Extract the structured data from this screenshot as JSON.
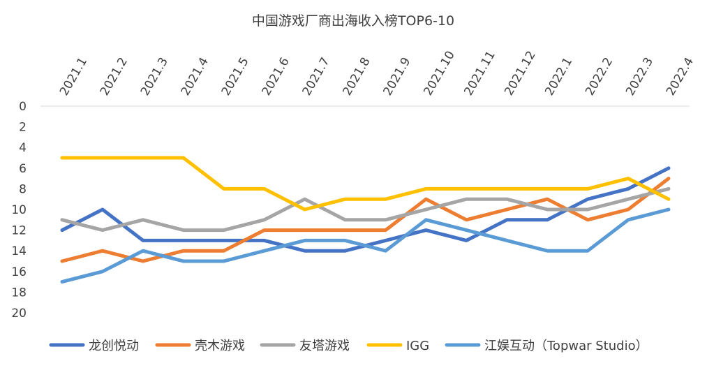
{
  "chart_data": {
    "type": "line",
    "title": "中国游戏厂商出海收入榜TOP6-10",
    "categories": [
      "2021.1",
      "2021.2",
      "2021.3",
      "2021.4",
      "2021.5",
      "2021.6",
      "2021.7",
      "2021.8",
      "2021.9",
      "2021.10",
      "2021.11",
      "2021.12",
      "2022.1",
      "2022.2",
      "2022.3",
      "2022.4"
    ],
    "y_axis": {
      "reversed": true,
      "ylim": [
        0,
        20
      ],
      "ticks": [
        0,
        2,
        4,
        6,
        8,
        10,
        12,
        14,
        16,
        18,
        20
      ]
    },
    "grid": false,
    "legend_position": "bottom",
    "series": [
      {
        "name": "龙创悦动",
        "color": "#4472C4",
        "values": [
          12,
          10,
          13,
          13,
          13,
          13,
          14,
          14,
          13,
          12,
          13,
          11,
          11,
          9,
          8,
          6
        ]
      },
      {
        "name": "壳木游戏",
        "color": "#ED7D31",
        "values": [
          15,
          14,
          15,
          14,
          14,
          12,
          12,
          12,
          12,
          9,
          11,
          10,
          9,
          11,
          10,
          7
        ]
      },
      {
        "name": "友塔游戏",
        "color": "#A5A5A5",
        "values": [
          11,
          12,
          11,
          12,
          12,
          11,
          9,
          11,
          11,
          10,
          9,
          9,
          10,
          10,
          9,
          8
        ]
      },
      {
        "name": "IGG",
        "color": "#FFC000",
        "values": [
          5,
          5,
          5,
          5,
          8,
          8,
          10,
          9,
          9,
          8,
          8,
          8,
          8,
          8,
          7,
          9
        ]
      },
      {
        "name": "江娱互动（Topwar Studio）",
        "color": "#5B9BD5",
        "values": [
          17,
          16,
          14,
          15,
          15,
          14,
          13,
          13,
          14,
          11,
          12,
          13,
          14,
          14,
          11,
          10
        ]
      }
    ]
  }
}
